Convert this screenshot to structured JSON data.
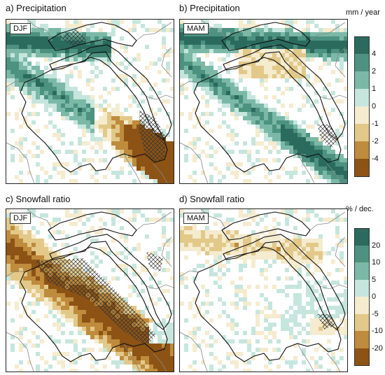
{
  "figure": {
    "panels": [
      {
        "title": "a) Precipitation",
        "season": "DJF",
        "variable": "precip",
        "pattern": "precip_djf"
      },
      {
        "title": "b) Precipitation",
        "season": "MAM",
        "variable": "precip",
        "pattern": "precip_mam"
      },
      {
        "title": "c) Snowfall ratio",
        "season": "DJF",
        "variable": "snow",
        "pattern": "snow_djf"
      },
      {
        "title": "d) Snowfall ratio",
        "season": "MAM",
        "variable": "snow",
        "pattern": "snow_mam"
      }
    ],
    "colorbars": {
      "precip": {
        "unit": "mm / year",
        "ticks": [
          "4",
          "2",
          "1",
          "0",
          "-1",
          "-2",
          "-4"
        ],
        "colors": [
          "#2a6b5e",
          "#4d9280",
          "#7bb9a6",
          "#c6e6dd",
          "#f5ebcf",
          "#e2c98a",
          "#bf8b3c",
          "#8c5315"
        ]
      },
      "snow": {
        "unit": "% / dec.",
        "ticks": [
          "20",
          "10",
          "5",
          "0",
          "-5",
          "-10",
          "-20"
        ],
        "colors": [
          "#2a6b5e",
          "#4d9280",
          "#7bb9a6",
          "#c6e6dd",
          "#f5ebcf",
          "#e2c98a",
          "#bf8b3c",
          "#8c5315"
        ]
      }
    }
  }
}
